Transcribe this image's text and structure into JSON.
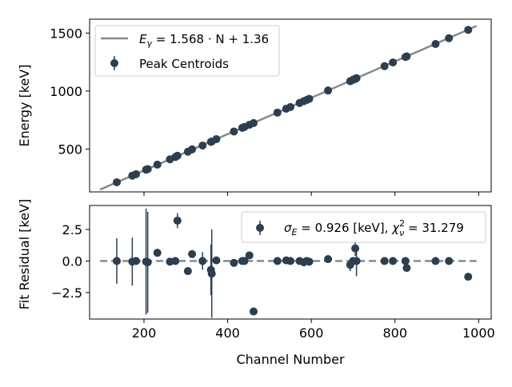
{
  "chart_data": [
    {
      "type": "scatter",
      "panel": "top",
      "xlabel": "",
      "ylabel": "Energy [keV]",
      "xlim": [
        70,
        1030
      ],
      "ylim": [
        130,
        1620
      ],
      "xticks": [
        200,
        400,
        600,
        800,
        1000
      ],
      "yticks": [
        500,
        1000,
        1500
      ],
      "ytick_labels": [
        "500",
        "1000",
        "1500"
      ],
      "show_xtick_labels": false,
      "legend_placement": "top-left",
      "fit": {
        "label_tex": "E_{γ} = 1.568 · N + 1.36",
        "label_base": "E",
        "label_sub": "γ",
        "label_rest": " = 1.568 · N + 1.36",
        "slope": 1.568,
        "intercept": 1.36,
        "x_range": [
          95,
          995
        ],
        "color": "#838b8b"
      },
      "series": [
        {
          "name": "Peak Centroids",
          "color": "#2c3e50",
          "x": [
            135,
            172,
            181,
            205,
            209,
            232,
            262,
            275,
            280,
            305,
            315,
            340,
            360,
            362,
            373,
            415,
            435,
            440,
            452,
            462,
            519,
            540,
            550,
            572,
            582,
            589,
            595,
            640,
            693,
            700,
            705,
            708,
            775,
            795,
            825,
            828,
            897,
            929,
            975
          ],
          "y": [
            213,
            270,
            283,
            322,
            327,
            365,
            411,
            431,
            442,
            477,
            497,
            530,
            562,
            565,
            585,
            651,
            683,
            690,
            709,
            724,
            814,
            847,
            862,
            897,
            913,
            923,
            933,
            1005,
            1085,
            1098,
            1105,
            1111,
            1215,
            1247,
            1294,
            1299,
            1406,
            1456,
            1528
          ]
        }
      ]
    },
    {
      "type": "scatter",
      "panel": "bottom",
      "xlabel": "Channel Number",
      "ylabel": "Fit Residual [keV]",
      "xlim": [
        70,
        1030
      ],
      "ylim": [
        -4.6,
        4.4
      ],
      "xticks": [
        200,
        400,
        600,
        800,
        1000
      ],
      "xtick_labels": [
        "200",
        "400",
        "600",
        "800",
        "1000"
      ],
      "yticks": [
        -2.5,
        0.0,
        2.5
      ],
      "ytick_labels": [
        "−2.5",
        "0.0",
        "2.5"
      ],
      "legend_placement": "top-right",
      "zero_line": {
        "y": 0,
        "x_range": [
          95,
          995
        ],
        "color": "#838b8b",
        "style": "dashed"
      },
      "legend_label_tex": "σ_E = 0.926 [keV], χ²_ν = 31.279",
      "legend_label_parts": {
        "sigma": "σ",
        "sigma_sub": "E",
        "mid": " = 0.926 [keV], ",
        "chi": "χ",
        "chi_sup": "2",
        "chi_sub": "ν",
        "end": " = 31.279"
      },
      "series": [
        {
          "name": "",
          "color": "#2c3e50",
          "x": [
            135,
            172,
            181,
            205,
            209,
            232,
            262,
            275,
            280,
            305,
            315,
            340,
            360,
            362,
            373,
            415,
            435,
            440,
            452,
            462,
            519,
            540,
            550,
            572,
            582,
            589,
            595,
            640,
            693,
            700,
            705,
            708,
            775,
            795,
            825,
            828,
            897,
            929,
            975
          ],
          "y": [
            0.0,
            -0.05,
            0.0,
            -0.05,
            -0.1,
            0.65,
            -0.05,
            0.0,
            3.2,
            -0.8,
            0.55,
            0.0,
            -0.7,
            -1.0,
            0.05,
            -0.15,
            0.0,
            0.0,
            0.45,
            -4.0,
            0.0,
            0.05,
            0.0,
            0.0,
            -0.1,
            0.0,
            -0.05,
            0.15,
            -0.3,
            0.0,
            1.0,
            0.0,
            0.0,
            0.0,
            0.0,
            -0.55,
            0.0,
            0.0,
            -1.25
          ],
          "yerr": [
            1.8,
            1.9,
            0.0,
            4.2,
            4.0,
            0.0,
            0.0,
            0.0,
            0.6,
            0.0,
            0.0,
            0.7,
            2.0,
            3.5,
            0.0,
            0.0,
            0.0,
            0.0,
            0.0,
            0.0,
            0.0,
            0.0,
            0.0,
            0.0,
            0.0,
            0.0,
            0.0,
            0.0,
            0.5,
            0.3,
            0.6,
            1.2,
            0.0,
            0.0,
            0.0,
            0.0,
            0.0,
            0.0,
            0.0
          ]
        }
      ]
    }
  ]
}
